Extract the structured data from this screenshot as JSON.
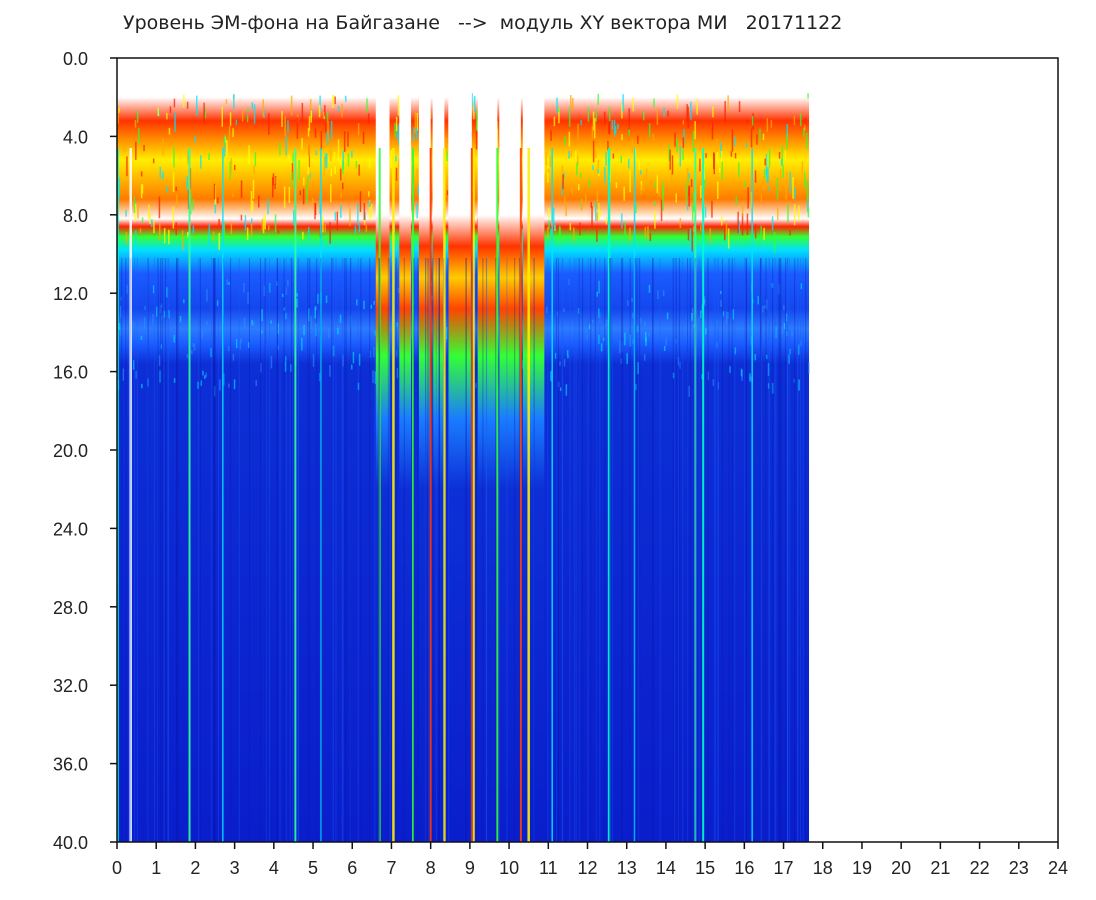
{
  "title": "Уровень ЭМ-фона на Байгазане   -->  модуль XY вектора МИ   20171122",
  "chart_data": {
    "type": "heatmap",
    "title": "Уровень ЭМ-фона на Байгазане   -->  модуль XY вектора МИ   20171122",
    "xlabel": "",
    "ylabel": "",
    "x_range": [
      0,
      24
    ],
    "y_range": [
      0,
      40
    ],
    "y_inverted": true,
    "x_ticks": [
      "0",
      "1",
      "2",
      "3",
      "4",
      "5",
      "6",
      "7",
      "8",
      "9",
      "10",
      "11",
      "12",
      "13",
      "14",
      "15",
      "16",
      "17",
      "18",
      "19",
      "20",
      "21",
      "22",
      "23",
      "24"
    ],
    "y_ticks": [
      "0.0",
      "4.0",
      "8.0",
      "12.0",
      "16.0",
      "20.0",
      "24.0",
      "28.0",
      "32.0",
      "36.0",
      "40.0"
    ],
    "data_end_x": 17.65,
    "colormap": [
      "#0a1ecc",
      "#1a5cff",
      "#00e5ff",
      "#33ff33",
      "#ffff00",
      "#ff2200"
    ],
    "grid": false
  }
}
